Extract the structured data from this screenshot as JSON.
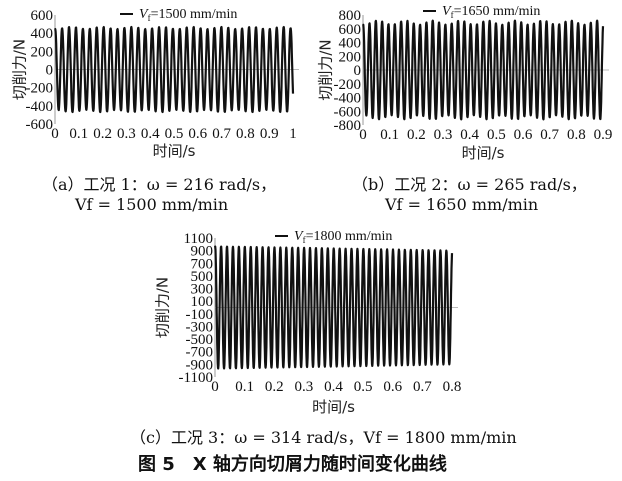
{
  "chart_data": [
    {
      "type": "line",
      "panel": "a",
      "xlabel": "时间/s",
      "ylabel": "切削力/N",
      "xlim": [
        0,
        1
      ],
      "ylim": [
        -600,
        600
      ],
      "xticks": [
        "0",
        "0.1",
        "0.2",
        "0.3",
        "0.4",
        "0.5",
        "0.6",
        "0.7",
        "0.8",
        "0.9",
        "1"
      ],
      "yticks": [
        "600",
        "400",
        "200",
        "0",
        "-200",
        "-400",
        "-600"
      ],
      "legend": {
        "v": "V",
        "sub": "f",
        "rest": "=1500 mm/min",
        "placement": "top-center"
      },
      "series": [
        {
          "name": "Vf=1500 mm/min",
          "omega_rad_s": 216,
          "amplitude_approx": 470,
          "amplitude_min": 430,
          "t_end": 1.0
        }
      ],
      "color": "#111111",
      "zero_line_color": "#bbbbbb",
      "caption": {
        "line1": "（a）工况 1：ω = 216 rad/s，",
        "line2": "Vf = 1500 mm/min"
      }
    },
    {
      "type": "line",
      "panel": "b",
      "xlabel": "时间/s",
      "ylabel": "切削力/N",
      "xlim": [
        0,
        0.9
      ],
      "ylim": [
        -800,
        800
      ],
      "xticks": [
        "0",
        "0.1",
        "0.2",
        "0.3",
        "0.4",
        "0.5",
        "0.6",
        "0.7",
        "0.8",
        "0.9"
      ],
      "yticks": [
        "800",
        "600",
        "400",
        "200",
        "0",
        "-200",
        "-400",
        "-600",
        "-800"
      ],
      "legend": {
        "v": "V",
        "sub": "f",
        "rest": "=1650 mm/min",
        "placement": "top-center"
      },
      "series": [
        {
          "name": "Vf=1650 mm/min",
          "omega_rad_s": 265,
          "amplitude_approx": 720,
          "amplitude_min": 620,
          "t_end": 0.9
        }
      ],
      "color": "#111111",
      "zero_line_color": "#bbbbbb",
      "caption": {
        "line1": "（b）工况 2：ω = 265 rad/s，",
        "line2": "Vf = 1650 mm/min"
      }
    },
    {
      "type": "line",
      "panel": "c",
      "xlabel": "时间/s",
      "ylabel": "切削力/N",
      "xlim": [
        0,
        0.8
      ],
      "ylim": [
        -1100,
        1100
      ],
      "xticks": [
        "0",
        "0.1",
        "0.2",
        "0.3",
        "0.4",
        "0.5",
        "0.6",
        "0.7",
        "0.8"
      ],
      "yticks": [
        "1100",
        "900",
        "700",
        "500",
        "300",
        "100",
        "-100",
        "-300",
        "-500",
        "-700",
        "-900",
        "-1100"
      ],
      "legend": {
        "v": "V",
        "sub": "f",
        "rest": "=1800 mm/min",
        "placement": "top-center"
      },
      "series": [
        {
          "name": "Vf=1800 mm/min",
          "omega_rad_s": 314,
          "amplitude_approx": 970,
          "amplitude_end": 900,
          "t_end": 0.8
        }
      ],
      "color": "#111111",
      "zero_line_color": "#bbbbbb",
      "caption": {
        "line1": "（c）工况 3：ω = 314 rad/s，Vf = 1800 mm/min"
      }
    }
  ],
  "figure_title": "图 5　X 轴方向切屑力随时间变化曲线"
}
